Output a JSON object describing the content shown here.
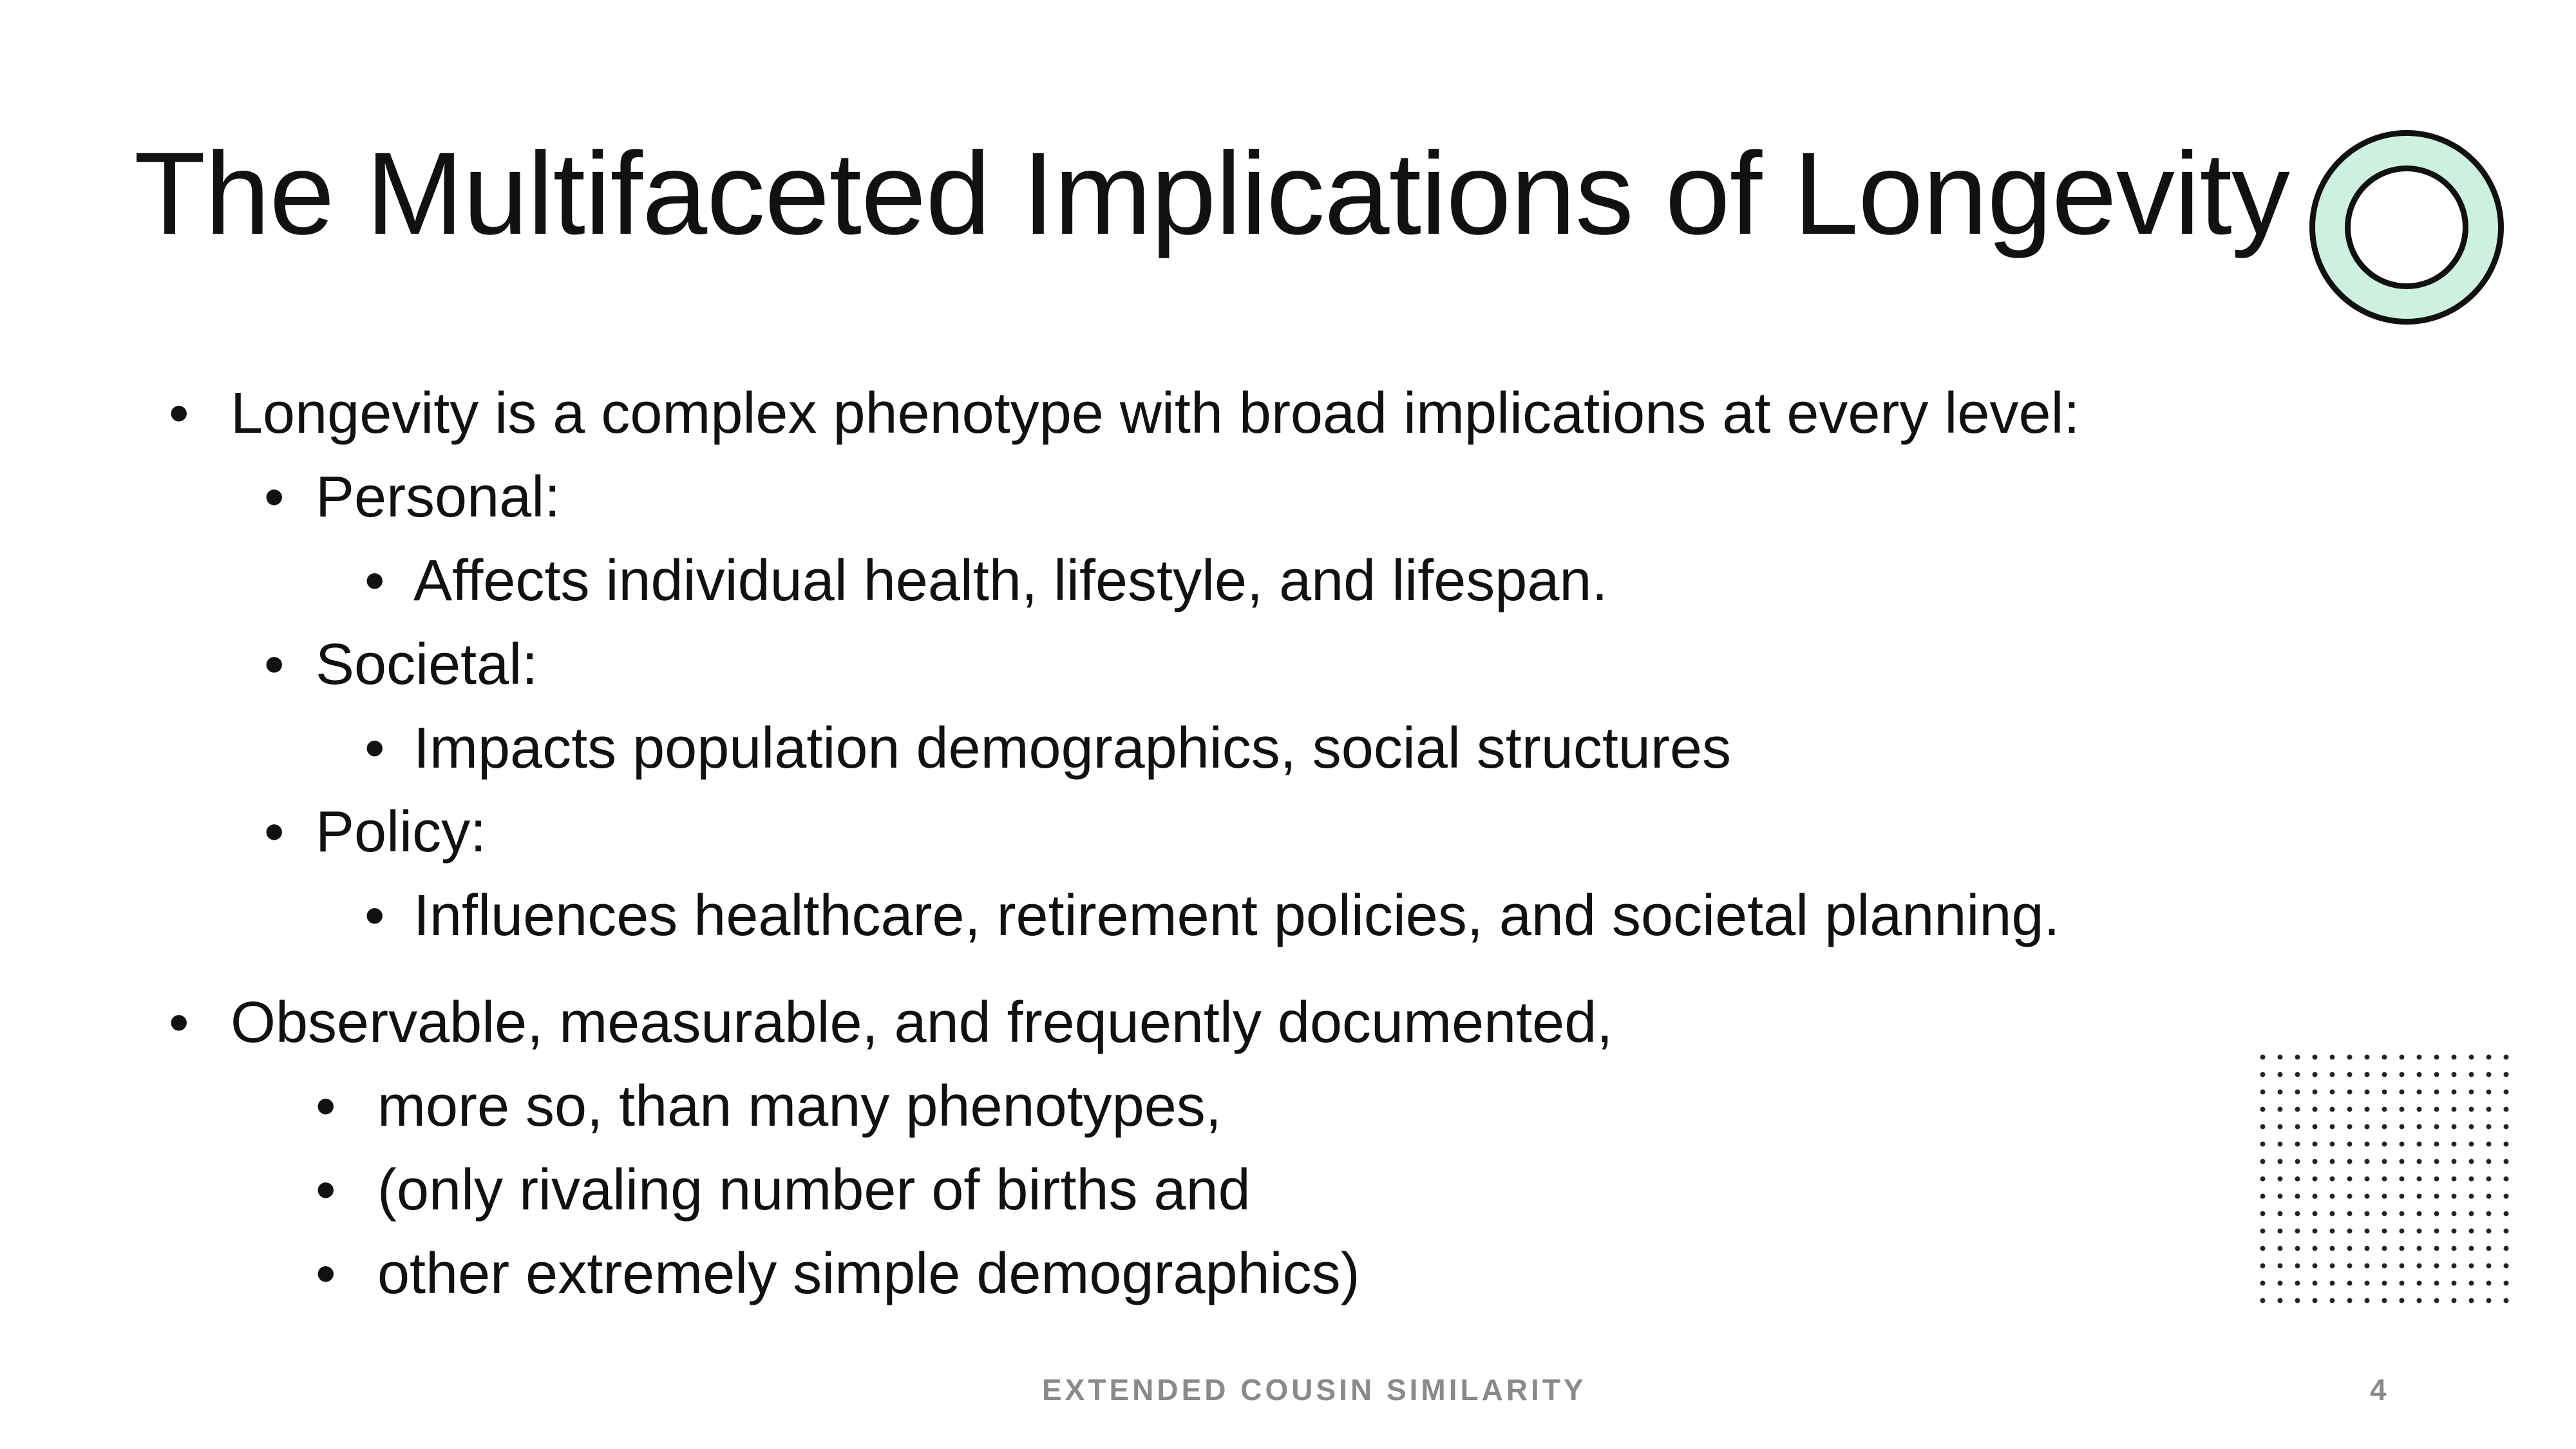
{
  "slide": {
    "title": "The Multifaceted Implications of Longevity",
    "bullet_glyph": "•",
    "bullets": [
      {
        "level": 1,
        "text": "Longevity is a complex phenotype with broad implications at every level:"
      },
      {
        "level": 2,
        "text": "Personal:"
      },
      {
        "level": 3,
        "text": "Affects individual health, lifestyle, and lifespan."
      },
      {
        "level": 2,
        "text": "Societal:"
      },
      {
        "level": 3,
        "text": "Impacts population demographics, social structures"
      },
      {
        "level": 2,
        "text": "Policy:"
      },
      {
        "level": 3,
        "text": "Influences healthcare, retirement policies, and societal planning."
      },
      {
        "level": 1,
        "text": "Observable, measurable,  and frequently documented,"
      },
      {
        "level": 2,
        "text": "more so, than many phenotypes,"
      },
      {
        "level": 2,
        "text": "(only rivaling number of births and"
      },
      {
        "level": 2,
        "text": "other extremely simple demographics)"
      }
    ],
    "footer": {
      "title": "EXTENDED COUSIN SIMILARITY",
      "page_number": "4"
    },
    "decorations": {
      "ring_fill_color": "#cdf1df",
      "ring_stroke_color": "#111111",
      "dot_grid_color": "#222222"
    }
  }
}
